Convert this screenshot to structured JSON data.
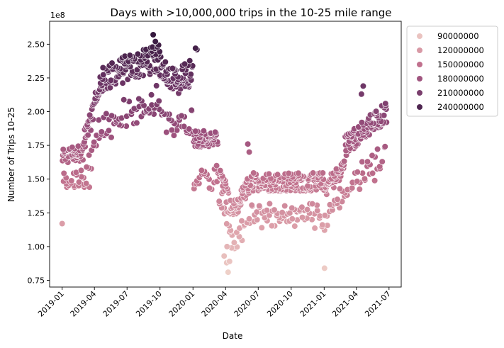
{
  "chart_data": {
    "type": "scatter",
    "title": "Days with >10,000,000 trips in the 10-25 mile range",
    "xlabel": "Date",
    "ylabel": "Number of Trips 10-25",
    "y_offset_label": "1e8",
    "xlim": [
      "2018-11-27",
      "2021-08-04"
    ],
    "ylim": [
      70000000,
      267000000
    ],
    "x_ticks": [
      "2019-01-01",
      "2019-04-01",
      "2019-07-01",
      "2019-10-01",
      "2020-01-01",
      "2020-04-01",
      "2020-07-01",
      "2020-10-01",
      "2021-01-01",
      "2021-04-01",
      "2021-07-01"
    ],
    "x_tick_labels": [
      "2019-01",
      "2019-04",
      "2019-07",
      "2019-10",
      "2020-01",
      "2020-04",
      "2020-07",
      "2020-10",
      "2021-01",
      "2021-04",
      "2021-07"
    ],
    "y_ticks": [
      75000000,
      100000000,
      125000000,
      150000000,
      175000000,
      200000000,
      225000000,
      250000000
    ],
    "y_tick_labels": [
      "0.75",
      "1.00",
      "1.25",
      "1.50",
      "1.75",
      "2.00",
      "2.25",
      "2.50"
    ],
    "grid": false,
    "legend": {
      "placement": "outside upper right",
      "entries": [
        "90000000",
        "120000000",
        "150000000",
        "180000000",
        "210000000",
        "240000000"
      ]
    },
    "hue_scale": {
      "domain": [
        80000000,
        257000000
      ],
      "stops": [
        "#efd1c9",
        "#dc9fa9",
        "#bf6f8c",
        "#9a4f7c",
        "#6b3565",
        "#35193e"
      ]
    },
    "segments": [
      {
        "start": "2019-01-01",
        "end": "2019-01-01",
        "base": [
          117000000,
          117000000
        ],
        "noise": 0
      },
      {
        "start": "2019-01-02",
        "end": "2019-02-28",
        "base": [
          166000000,
          170000000
        ],
        "noise": 6000000,
        "weekend_drop": 22000000
      },
      {
        "start": "2019-03-01",
        "end": "2019-04-15",
        "base": [
          175000000,
          215000000
        ],
        "noise": 9000000,
        "weekend_drop": 30000000
      },
      {
        "start": "2019-04-16",
        "end": "2019-06-30",
        "base": [
          222000000,
          232000000
        ],
        "noise": 10000000,
        "weekend_drop": 40000000
      },
      {
        "start": "2019-07-01",
        "end": "2019-09-30",
        "base": [
          232000000,
          240000000
        ],
        "noise": 10000000,
        "weekend_drop": 40000000
      },
      {
        "start": "2019-10-01",
        "end": "2019-11-15",
        "base": [
          235000000,
          222000000
        ],
        "noise": 9000000,
        "weekend_drop": 38000000
      },
      {
        "start": "2019-11-16",
        "end": "2019-12-31",
        "base": [
          222000000,
          230000000
        ],
        "noise": 10000000,
        "weekend_drop": 40000000
      },
      {
        "start": "2020-01-01",
        "end": "2020-03-10",
        "base": [
          180000000,
          180000000
        ],
        "noise": 6000000,
        "weekend_drop": 35000000
      },
      {
        "start": "2020-03-11",
        "end": "2020-04-20",
        "base": [
          160000000,
          122000000
        ],
        "noise": 8000000,
        "weekend_drop": 22000000
      },
      {
        "start": "2020-04-21",
        "end": "2020-06-15",
        "base": [
          125000000,
          150000000
        ],
        "noise": 7000000,
        "weekend_drop": 28000000
      },
      {
        "start": "2020-06-16",
        "end": "2020-12-31",
        "base": [
          148000000,
          148000000
        ],
        "noise": 7000000,
        "weekend_drop": 30000000
      },
      {
        "start": "2021-01-01",
        "end": "2021-02-28",
        "base": [
          142000000,
          160000000
        ],
        "noise": 7000000,
        "weekend_drop": 25000000
      },
      {
        "start": "2021-03-01",
        "end": "2021-06-24",
        "base": [
          175000000,
          200000000
        ],
        "noise": 8000000,
        "weekend_drop": 38000000
      }
    ],
    "extra_points": [
      {
        "date": "2020-03-28",
        "value": 93000000
      },
      {
        "date": "2020-04-04",
        "value": 88000000
      },
      {
        "date": "2020-04-08",
        "value": 81000000
      },
      {
        "date": "2020-04-12",
        "value": 89000000
      },
      {
        "date": "2020-04-05",
        "value": 100000000
      },
      {
        "date": "2020-04-15",
        "value": 112000000
      },
      {
        "date": "2021-01-02",
        "value": 84000000
      },
      {
        "date": "2021-04-20",
        "value": 219000000
      },
      {
        "date": "2021-04-15",
        "value": 213000000
      },
      {
        "date": "2020-01-08",
        "value": 247000000
      },
      {
        "date": "2020-01-12",
        "value": 246000000
      },
      {
        "date": "2019-09-12",
        "value": 257000000
      },
      {
        "date": "2019-09-18",
        "value": 252000000
      },
      {
        "date": "2020-06-02",
        "value": 176000000
      },
      {
        "date": "2020-06-06",
        "value": 170000000
      },
      {
        "date": "2019-01-14",
        "value": 144000000
      },
      {
        "date": "2019-02-04",
        "value": 144000000
      },
      {
        "date": "2019-03-04",
        "value": 144000000
      },
      {
        "date": "2019-03-18",
        "value": 144000000
      }
    ]
  }
}
